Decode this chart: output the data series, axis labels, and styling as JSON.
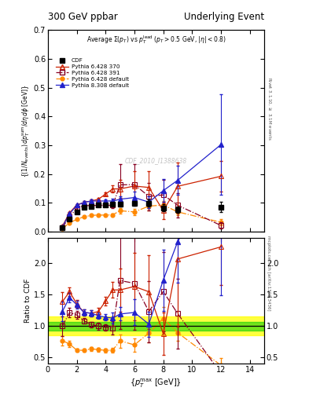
{
  "title_left": "300 GeV ppbar",
  "title_right": "Underlying Event",
  "watermark": "CDF_2010_I1388638",
  "xlabel": "$\\{p_T^{\\rm max}$ [GeV]$\\}$",
  "ylabel_main": "$\\{(1/N_{\\rm events})\\, dp_T^{\\rm sum}/d\\eta\\, d\\phi$ [GeV]$\\}$",
  "ylabel_ratio": "Ratio to CDF",
  "xlim": [
    0,
    15
  ],
  "ylim_main": [
    0,
    0.7
  ],
  "ylim_ratio": [
    0.4,
    2.4
  ],
  "main_yticks": [
    0.0,
    0.1,
    0.2,
    0.3,
    0.4,
    0.5,
    0.6,
    0.7
  ],
  "ratio_yticks": [
    0.5,
    1.0,
    1.5,
    2.0
  ],
  "cdf_x": [
    1.0,
    1.5,
    2.0,
    2.5,
    3.0,
    3.5,
    4.0,
    4.5,
    5.0,
    6.0,
    7.0,
    8.0,
    9.0,
    12.0
  ],
  "cdf_y": [
    0.013,
    0.042,
    0.068,
    0.083,
    0.088,
    0.091,
    0.093,
    0.094,
    0.094,
    0.097,
    0.099,
    0.082,
    0.076,
    0.085
  ],
  "cdf_yerr": [
    0.003,
    0.004,
    0.005,
    0.005,
    0.005,
    0.005,
    0.005,
    0.005,
    0.006,
    0.008,
    0.012,
    0.012,
    0.012,
    0.018
  ],
  "p6_370_x": [
    1.0,
    1.5,
    2.0,
    2.5,
    3.0,
    3.5,
    4.0,
    4.5,
    5.0,
    6.0,
    7.0,
    8.0,
    9.0,
    12.0
  ],
  "p6_370_y": [
    0.018,
    0.065,
    0.092,
    0.101,
    0.106,
    0.112,
    0.13,
    0.148,
    0.148,
    0.158,
    0.153,
    0.072,
    0.157,
    0.192
  ],
  "p6_370_yerr": [
    0.002,
    0.003,
    0.004,
    0.004,
    0.004,
    0.005,
    0.006,
    0.012,
    0.032,
    0.052,
    0.058,
    0.028,
    0.082,
    0.052
  ],
  "p6_391_x": [
    1.0,
    1.5,
    2.0,
    2.5,
    3.0,
    3.5,
    4.0,
    4.5,
    5.0,
    6.0,
    7.0,
    8.0,
    9.0,
    12.0
  ],
  "p6_391_y": [
    0.013,
    0.051,
    0.08,
    0.09,
    0.09,
    0.091,
    0.091,
    0.091,
    0.162,
    0.163,
    0.122,
    0.127,
    0.091,
    0.021
  ],
  "p6_391_yerr": [
    0.002,
    0.003,
    0.004,
    0.004,
    0.004,
    0.005,
    0.005,
    0.01,
    0.072,
    0.072,
    0.048,
    0.052,
    0.042,
    0.01
  ],
  "p6_def_x": [
    1.0,
    1.5,
    2.0,
    2.5,
    3.0,
    3.5,
    4.0,
    4.5,
    5.0,
    6.0,
    7.0,
    8.0,
    9.0,
    12.0
  ],
  "p6_def_y": [
    0.01,
    0.03,
    0.042,
    0.051,
    0.056,
    0.057,
    0.057,
    0.058,
    0.072,
    0.068,
    0.088,
    0.092,
    0.068,
    0.032
  ],
  "p6_def_yerr": [
    0.001,
    0.002,
    0.002,
    0.002,
    0.003,
    0.003,
    0.003,
    0.004,
    0.01,
    0.01,
    0.015,
    0.015,
    0.01,
    0.01
  ],
  "p8_def_x": [
    1.0,
    1.5,
    2.0,
    2.5,
    3.0,
    3.5,
    4.0,
    4.5,
    5.0,
    6.0,
    7.0,
    8.0,
    9.0,
    12.0
  ],
  "p8_def_y": [
    0.016,
    0.061,
    0.091,
    0.101,
    0.106,
    0.106,
    0.106,
    0.106,
    0.112,
    0.118,
    0.102,
    0.142,
    0.178,
    0.302
  ],
  "p8_def_yerr": [
    0.002,
    0.003,
    0.004,
    0.004,
    0.004,
    0.005,
    0.005,
    0.008,
    0.01,
    0.02,
    0.02,
    0.04,
    0.05,
    0.175
  ],
  "cdf_color": "#000000",
  "p6_370_color": "#cc2200",
  "p6_391_color": "#880022",
  "p6_def_color": "#ff8800",
  "p8_def_color": "#2222cc",
  "band_yellow_lo": 0.85,
  "band_yellow_hi": 1.15,
  "band_green_lo": 0.93,
  "band_green_hi": 1.07
}
